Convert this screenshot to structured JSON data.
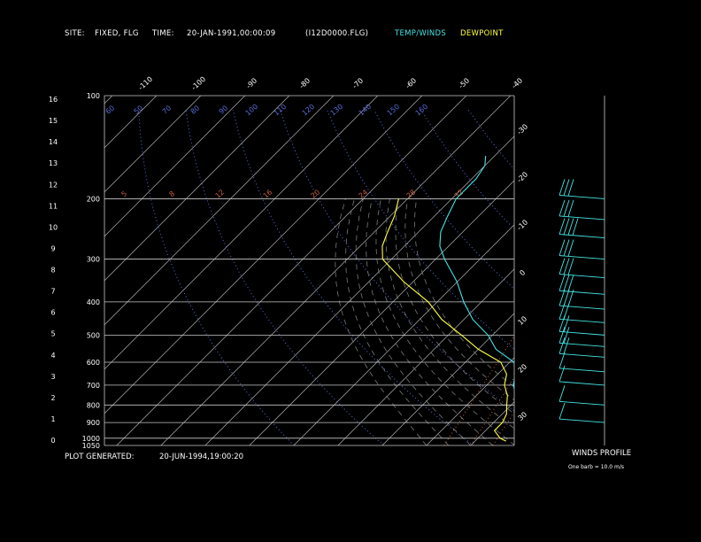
{
  "header": {
    "site_label": "SITE:",
    "site_value": "FIXED, FLG",
    "time_label": "TIME:",
    "time_value": "20-JAN-1991,00:00:09",
    "file": "(I12D0000.FLG)",
    "legend_temp": "TEMP/WINDS",
    "legend_dew": "DEWPOINT"
  },
  "footer": {
    "generated_label": "PLOT GENERATED:",
    "generated_value": "20-JUN-1994,19:00:20",
    "winds_title": "WINDS PROFILE",
    "barb_note": "One barb = 10.0 m/s"
  },
  "colors": {
    "temp": "#44e4e4",
    "dewpoint": "#ffff44",
    "isobar": "#c8c8c8",
    "isotherm": "#c8c8c8",
    "dry_adiabat": "#5a6edc",
    "moist_adiabat": "#7a7a7a",
    "mixing_ratio": "#c8603a",
    "text": "#ffffff"
  },
  "chart_data": {
    "type": "line",
    "pressure_levels": [
      100,
      200,
      300,
      400,
      500,
      600,
      700,
      800,
      900,
      1000,
      1050
    ],
    "height_km_ticks": [
      "0",
      "1",
      "2",
      "3",
      "4",
      "5",
      "6",
      "7",
      "8",
      "9",
      "10",
      "11",
      "12",
      "13",
      "14",
      "15",
      "16"
    ],
    "isotherm_labels": [
      "-110",
      "-100",
      "-90",
      "-80",
      "-70",
      "-60",
      "-50",
      "-40"
    ],
    "isotherm_right_labels": [
      "-30",
      "-20",
      "-10",
      "0",
      "10",
      "20",
      "30"
    ],
    "isotherm_right_labels_rendered": [
      "-30",
      "-20",
      "-10",
      "0",
      "10",
      "20",
      "30"
    ],
    "dry_adiabat_labels": [
      "90",
      "60",
      "50",
      "70",
      "80",
      "90",
      "100",
      "110",
      "120",
      "130",
      "140",
      "150",
      "160"
    ],
    "mixing_ratio_labels": [
      "5",
      "8",
      "12",
      "16",
      "20",
      "24",
      "28",
      "32"
    ],
    "temperature": [
      {
        "p": 1020,
        "t": 14
      },
      {
        "p": 1000,
        "t": 10
      },
      {
        "p": 950,
        "t": 7
      },
      {
        "p": 900,
        "t": 6
      },
      {
        "p": 850,
        "t": 3
      },
      {
        "p": 800,
        "t": 1
      },
      {
        "p": 750,
        "t": -1
      },
      {
        "p": 700,
        "t": -4
      },
      {
        "p": 650,
        "t": -6
      },
      {
        "p": 600,
        "t": -9
      },
      {
        "p": 550,
        "t": -16
      },
      {
        "p": 500,
        "t": -21
      },
      {
        "p": 450,
        "t": -28
      },
      {
        "p": 400,
        "t": -34
      },
      {
        "p": 350,
        "t": -40
      },
      {
        "p": 300,
        "t": -48
      },
      {
        "p": 275,
        "t": -52
      },
      {
        "p": 250,
        "t": -55
      },
      {
        "p": 225,
        "t": -57
      },
      {
        "p": 200,
        "t": -59
      },
      {
        "p": 175,
        "t": -59
      },
      {
        "p": 160,
        "t": -60
      },
      {
        "p": 150,
        "t": -62
      }
    ],
    "dewpoint": [
      {
        "p": 1020,
        "t": 7
      },
      {
        "p": 1000,
        "t": 5
      },
      {
        "p": 950,
        "t": 2
      },
      {
        "p": 900,
        "t": 2
      },
      {
        "p": 850,
        "t": 1
      },
      {
        "p": 800,
        "t": -1
      },
      {
        "p": 750,
        "t": -3
      },
      {
        "p": 700,
        "t": -6
      },
      {
        "p": 650,
        "t": -8
      },
      {
        "p": 600,
        "t": -12
      },
      {
        "p": 550,
        "t": -20
      },
      {
        "p": 500,
        "t": -27
      },
      {
        "p": 450,
        "t": -35
      },
      {
        "p": 400,
        "t": -42
      },
      {
        "p": 350,
        "t": -52
      },
      {
        "p": 300,
        "t": -62
      },
      {
        "p": 275,
        "t": -65
      },
      {
        "p": 250,
        "t": -67
      },
      {
        "p": 225,
        "t": -69
      },
      {
        "p": 200,
        "t": -72
      }
    ],
    "winds": [
      {
        "p": 200,
        "speed": 25
      },
      {
        "p": 230,
        "speed": 30
      },
      {
        "p": 260,
        "speed": 35
      },
      {
        "p": 300,
        "speed": 32
      },
      {
        "p": 340,
        "speed": 30
      },
      {
        "p": 380,
        "speed": 28
      },
      {
        "p": 420,
        "speed": 25
      },
      {
        "p": 460,
        "speed": 22
      },
      {
        "p": 500,
        "speed": 20
      },
      {
        "p": 540,
        "speed": 18
      },
      {
        "p": 580,
        "speed": 15
      },
      {
        "p": 640,
        "speed": 12
      },
      {
        "p": 700,
        "speed": 10
      },
      {
        "p": 800,
        "speed": 8
      },
      {
        "p": 900,
        "speed": 6
      }
    ]
  }
}
